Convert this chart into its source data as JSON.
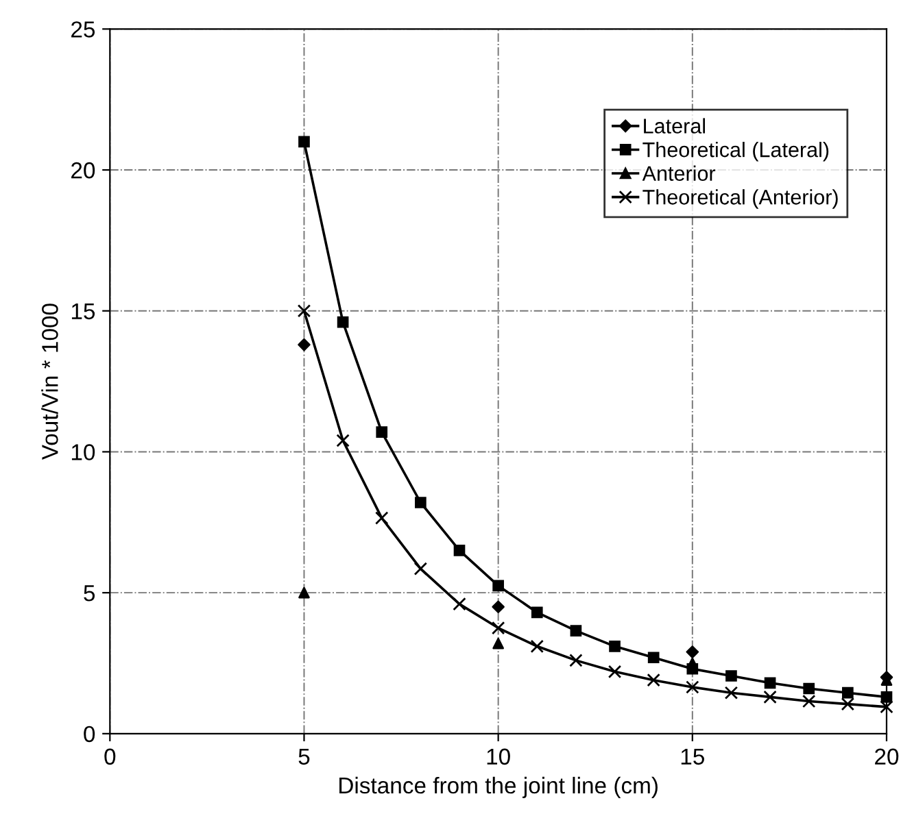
{
  "chart_data": {
    "type": "line",
    "xlabel": "Distance from the joint line (cm)",
    "ylabel": "Vout/Vin * 1000",
    "xlim": [
      0,
      20
    ],
    "xticks": [
      0,
      5,
      10,
      15,
      20
    ],
    "ylim": [
      0,
      25
    ],
    "yticks": [
      0,
      5,
      10,
      15,
      20,
      25
    ],
    "grid": true,
    "legend": "top right",
    "series": [
      {
        "name": "Lateral",
        "type": "scatter",
        "marker": "diamond",
        "color": "#000000",
        "x": [
          5,
          10,
          15,
          20
        ],
        "values": [
          13.8,
          4.5,
          2.9,
          2.0
        ]
      },
      {
        "name": "Theoretical (Lateral)",
        "marker": "square",
        "color": "#000000",
        "x": [
          5,
          6,
          7,
          8,
          9,
          10,
          11,
          12,
          13,
          14,
          15,
          16,
          17,
          18,
          19,
          20
        ],
        "values": [
          21.0,
          14.6,
          10.7,
          8.2,
          6.5,
          5.25,
          4.3,
          3.65,
          3.1,
          2.7,
          2.3,
          2.05,
          1.8,
          1.6,
          1.45,
          1.3
        ]
      },
      {
        "name": "Anterior",
        "type": "scatter",
        "marker": "triangle",
        "color": "#000000",
        "x": [
          5,
          10,
          15,
          20
        ],
        "values": [
          5.0,
          3.2,
          2.5,
          1.9
        ]
      },
      {
        "name": "Theoretical (Anterior)",
        "marker": "cross",
        "color": "#000000",
        "x": [
          5,
          6,
          7,
          8,
          9,
          10,
          11,
          12,
          13,
          14,
          15,
          16,
          17,
          18,
          19,
          20
        ],
        "values": [
          15.0,
          10.4,
          7.65,
          5.85,
          4.6,
          3.75,
          3.1,
          2.6,
          2.2,
          1.9,
          1.65,
          1.45,
          1.3,
          1.15,
          1.05,
          0.95
        ]
      }
    ]
  }
}
